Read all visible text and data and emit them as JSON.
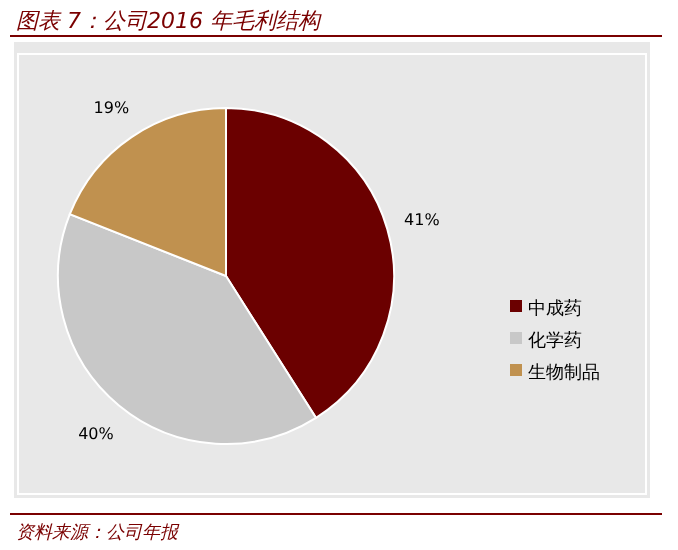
{
  "chart_data": {
    "type": "pie",
    "title": "图表 7：公司2016 年毛利结构",
    "categories": [
      "中成药",
      "化学药",
      "生物制品"
    ],
    "values": [
      41,
      40,
      19
    ],
    "colors": [
      "#6b0000",
      "#c8c8c8",
      "#c0914f"
    ],
    "value_labels": [
      "41%",
      "40%",
      "19%"
    ],
    "legend": "right",
    "annotations": [
      "资料来源：公司年报"
    ]
  }
}
